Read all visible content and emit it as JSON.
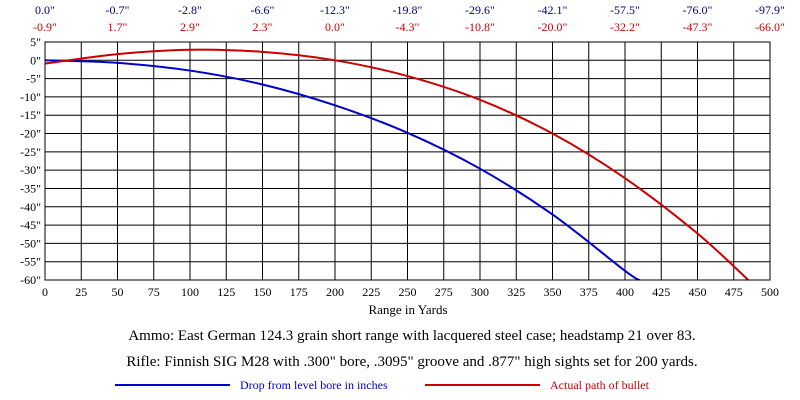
{
  "chart_data": {
    "type": "line",
    "xlabel": "Range in Yards",
    "ylabel": "",
    "xlim": [
      0,
      500
    ],
    "ylim": [
      -60,
      5
    ],
    "x_ticks": [
      "0",
      "25",
      "50",
      "75",
      "100",
      "125",
      "150",
      "175",
      "200",
      "225",
      "250",
      "275",
      "300",
      "325",
      "350",
      "375",
      "400",
      "425",
      "450",
      "475",
      "500"
    ],
    "y_ticks": [
      "5\"",
      "0\"",
      "-5\"",
      "-10\"",
      "-15\"",
      "-20\"",
      "-25\"",
      "-30\"",
      "-35\"",
      "-40\"",
      "-45\"",
      "-50\"",
      "-55\"",
      "-60\""
    ],
    "grid": true,
    "top_labels": {
      "drop": [
        "0.0\"",
        "-0.7\"",
        "-2.8\"",
        "-6.6\"",
        "-12.3\"",
        "-19.8\"",
        "-29.6\"",
        "-42.1\"",
        "-57.5\"",
        "-76.0\"",
        "-97.9\""
      ],
      "path": [
        "-0.9\"",
        "1.7\"",
        "2.9\"",
        "2.3\"",
        "0.0\"",
        "-4.3\"",
        "-10.8\"",
        "-20.0\"",
        "-32.2\"",
        "-47.3\"",
        "-66.0\""
      ]
    },
    "series": [
      {
        "name": "Drop from level bore in inches",
        "color": "#0000cc",
        "x": [
          0,
          50,
          100,
          150,
          200,
          250,
          300,
          350,
          400,
          410
        ],
        "y": [
          0.0,
          -0.7,
          -2.8,
          -6.6,
          -12.3,
          -19.8,
          -29.6,
          -42.1,
          -57.5,
          -60.0
        ]
      },
      {
        "name": "Actual path of bullet",
        "color": "#cc0000",
        "x": [
          0,
          50,
          100,
          150,
          200,
          250,
          300,
          350,
          400,
          450,
          485
        ],
        "y": [
          -0.9,
          1.7,
          2.9,
          2.3,
          0.0,
          -4.3,
          -10.8,
          -20.0,
          -32.2,
          -47.3,
          -60.0
        ]
      }
    ],
    "annotations": [
      "Ammo:  East German 124.3 grain short range with lacquered steel case; headstamp 21 over 83.",
      "Rifle:  Finnish SIG M28 with .300\" bore, .3095\" groove and .877\" high sights set for 200 yards."
    ],
    "legend": [
      "Drop from level bore in inches",
      "Actual path of bullet"
    ]
  }
}
